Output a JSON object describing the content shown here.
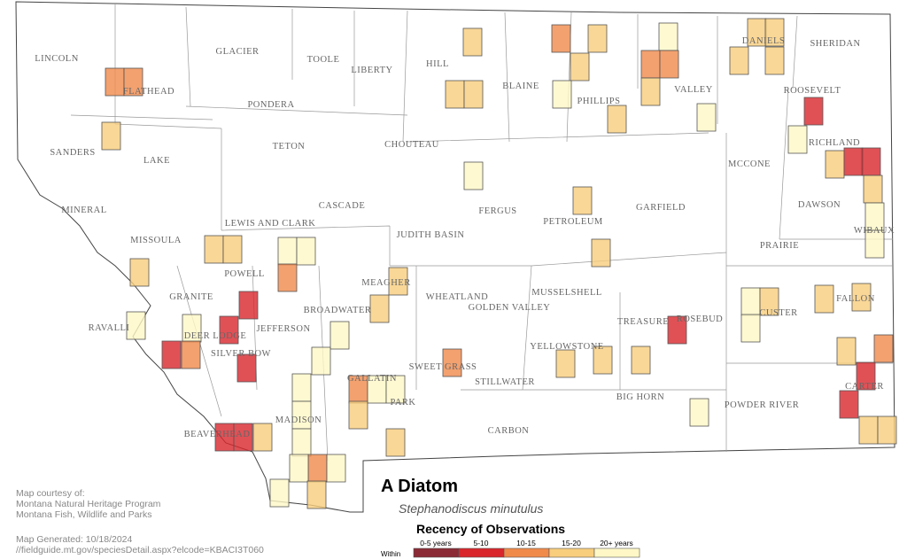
{
  "counties": [
    "LINCOLN",
    "FLATHEAD",
    "GLACIER",
    "TOOLE",
    "LIBERTY",
    "HILL",
    "BLAINE",
    "PHILLIPS",
    "VALLEY",
    "DANIELS",
    "SHERIDAN",
    "ROOSEVELT",
    "PONDERA",
    "TETON",
    "CHOUTEAU",
    "SANDERS",
    "LAKE",
    "RICHLAND",
    "MCCONE",
    "MINERAL",
    "CASCADE",
    "FERGUS",
    "PETROLEUM",
    "GARFIELD",
    "DAWSON",
    "WIBAUX",
    "MISSOULA",
    "LEWIS AND CLARK",
    "JUDITH BASIN",
    "PRAIRIE",
    "POWELL",
    "MEAGHER",
    "WHEATLAND",
    "MUSSELSHELL",
    "GOLDEN VALLEY",
    "GRANITE",
    "BROADWATER",
    "FALLON",
    "CUSTER",
    "ROSEBUD",
    "TREASURE",
    "RAVALLI",
    "DEER LODGE",
    "JEFFERSON",
    "SILVER BOW",
    "YELLOWSTONE",
    "SWEET GRASS",
    "STILLWATER",
    "GALLATIN",
    "PARK",
    "BIG HORN",
    "POWDER RIVER",
    "CARTER",
    "MADISON",
    "BEAVERHEAD",
    "CARBON"
  ],
  "title": "A Diatom",
  "subtitle": "Stephanodiscus minutulus",
  "legend": {
    "title": "Recency of Observations",
    "prefix": "Within",
    "items": [
      {
        "label": "0-5 years",
        "color": "#8b2a35"
      },
      {
        "label": "5-10",
        "color": "#d8262c"
      },
      {
        "label": "10-15",
        "color": "#f08a4b"
      },
      {
        "label": "15-20",
        "color": "#f8cd7c"
      },
      {
        "label": "20+ years",
        "color": "#fff8c6"
      }
    ]
  },
  "credits": [
    "Map courtesy of:",
    "Montana Natural Heritage Program",
    "Montana Fish, Wildlife and Parks"
  ],
  "generated": [
    "Map Generated: 10/18/2024",
    "//fieldguide.mt.gov/speciesDetail.aspx?elcode=KBACI3T060"
  ]
}
